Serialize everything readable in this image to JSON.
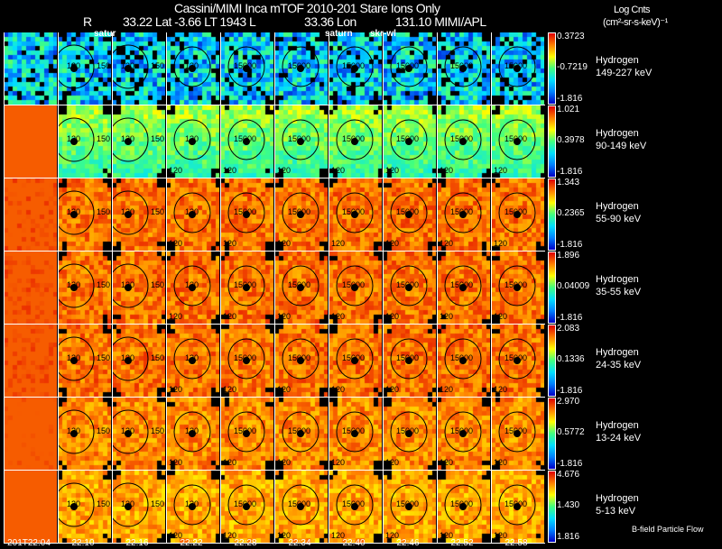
{
  "header": {
    "title": "Cassini/MIMI Inca mTOF  2010-201   Stare   Ions Only",
    "r_label": "R",
    "position": "33.22 Lat -3.66 LT 1943 L",
    "lon": "33.36 Lon",
    "misc": "131.10  MIMI/APL",
    "overlay_labels": [
      "satur",
      "saturn",
      "skr-wl"
    ]
  },
  "units": {
    "line1": "Log Cnts",
    "line2": "(cm²-sr-s-keV)⁻¹"
  },
  "footer": {
    "note": "B-field Particle Flow"
  },
  "panel_labels": {
    "inner": "120",
    "outer": "150",
    "far": "15000",
    "lower": "120"
  },
  "chart_data": {
    "type": "heatmap",
    "title": "Cassini/MIMI Inca mTOF 2010-201 Stare Ions Only",
    "times": [
      "201T22:04",
      "22:10",
      "22:16",
      "22:22",
      "22:28",
      "22:34",
      "22:40",
      "22:46",
      "22:52",
      "22:58"
    ],
    "rows": [
      {
        "species": "Hydrogen",
        "energy": "149-227 keV",
        "max": "0.3723",
        "mid": "-0.7219",
        "min": "-1.816",
        "level": 0.3
      },
      {
        "species": "Hydrogen",
        "energy": "90-149 keV",
        "max": "1.021",
        "mid": "0.3978",
        "min": "-1.816",
        "level": 0.6
      },
      {
        "species": "Hydrogen",
        "energy": "55-90 keV",
        "max": "1.343",
        "mid": "0.2365",
        "min": "-1.816",
        "level": 0.85
      },
      {
        "species": "Hydrogen",
        "energy": "35-55 keV",
        "max": "1.896",
        "mid": "0.04009",
        "min": "-1.816",
        "level": 0.85
      },
      {
        "species": "Hydrogen",
        "energy": "24-35 keV",
        "max": "2.083",
        "mid": "0.1336",
        "min": "-1.816",
        "level": 0.85
      },
      {
        "species": "Hydrogen",
        "energy": "13-24 keV",
        "max": "2.970",
        "mid": "0.5772",
        "min": "-1.816",
        "level": 0.82
      },
      {
        "species": "Hydrogen",
        "energy": "5-13 keV",
        "max": "4.676",
        "mid": "1.430",
        "min": "1.816",
        "level": 0.78
      }
    ],
    "colorscale": [
      "#0000c8",
      "#0080ff",
      "#00e0ff",
      "#40ff80",
      "#ffff00",
      "#ff8000",
      "#e00000"
    ]
  }
}
